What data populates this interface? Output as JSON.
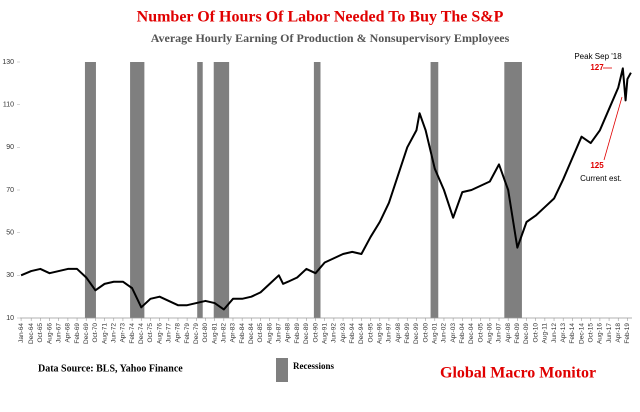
{
  "chart_data": {
    "type": "line",
    "title": "Number Of Hours Of Labor Needed To Buy The S&P",
    "subtitle": "Average Hourly Earning Of Production & Nonsupervisory  Employees",
    "x": [
      1964.0,
      1964.917,
      1965.75,
      1966.583,
      1967.417,
      1968.25,
      1969.083,
      1969.917,
      1970.75,
      1971.583,
      1972.417,
      1973.25,
      1974.083,
      1974.917,
      1975.75,
      1976.583,
      1977.417,
      1978.25,
      1979.083,
      1979.917,
      1980.75,
      1981.583,
      1982.417,
      1983.25,
      1984.083,
      1984.917,
      1985.75,
      1986.583,
      1987.417,
      1987.8,
      1988.25,
      1989.083,
      1989.917,
      1990.75,
      1991.583,
      1992.417,
      1993.25,
      1994.083,
      1994.917,
      1995.75,
      1996.583,
      1997.417,
      1998.25,
      1999.083,
      1999.917,
      2000.2,
      2000.75,
      2001.583,
      2002.417,
      2003.25,
      2004.083,
      2004.917,
      2005.75,
      2006.583,
      2007.417,
      2008.25,
      2009.083,
      2009.917,
      2010.75,
      2011.583,
      2012.417,
      2013.25,
      2014.083,
      2014.917,
      2015.75,
      2016.583,
      2017.417,
      2018.25,
      2018.667,
      2018.917,
      2019.083,
      2019.4
    ],
    "series": [
      {
        "name": "Hours of labor",
        "color": "#000000",
        "values": [
          30,
          32,
          33,
          31,
          32,
          33,
          33,
          29,
          23,
          26,
          27,
          27,
          24,
          15,
          19,
          20,
          18,
          16,
          16,
          17,
          18,
          17,
          14,
          19,
          19,
          20,
          22,
          26,
          30,
          26,
          27,
          29,
          33,
          31,
          36,
          38,
          40,
          41,
          40,
          48,
          55,
          64,
          77,
          90,
          98,
          106,
          98,
          80,
          70,
          57,
          69,
          70,
          72,
          74,
          82,
          70,
          43,
          55,
          58,
          62,
          66,
          75,
          85,
          95,
          92,
          98,
          108,
          118,
          127,
          112,
          122,
          125
        ]
      }
    ],
    "recessions": {
      "name": "Recessions",
      "color": "#7f7f7f",
      "periods": [
        [
          1969.8,
          1970.8
        ],
        [
          1973.9,
          1975.2
        ],
        [
          1980.0,
          1980.5
        ],
        [
          1981.5,
          1982.9
        ],
        [
          1990.6,
          1991.2
        ],
        [
          2001.2,
          2001.9
        ],
        [
          2007.9,
          2009.5
        ]
      ]
    },
    "xlim": [
      1963.9,
      2019.5
    ],
    "xticks": [
      {
        "value": 1964.0,
        "label": "Jan-64"
      },
      {
        "value": 1964.917,
        "label": "Dec-64"
      },
      {
        "value": 1965.75,
        "label": "Oct-65"
      },
      {
        "value": 1966.583,
        "label": "Aug-66"
      },
      {
        "value": 1967.417,
        "label": "Jun-67"
      },
      {
        "value": 1968.25,
        "label": "Apr-68"
      },
      {
        "value": 1969.083,
        "label": "Feb-69"
      },
      {
        "value": 1969.917,
        "label": "Dec-69"
      },
      {
        "value": 1970.75,
        "label": "Oct-70"
      },
      {
        "value": 1971.583,
        "label": "Aug-71"
      },
      {
        "value": 1972.417,
        "label": "Jun-72"
      },
      {
        "value": 1973.25,
        "label": "Apr-73"
      },
      {
        "value": 1974.083,
        "label": "Feb-74"
      },
      {
        "value": 1974.917,
        "label": "Dec-74"
      },
      {
        "value": 1975.75,
        "label": "Oct-75"
      },
      {
        "value": 1976.583,
        "label": "Aug-76"
      },
      {
        "value": 1977.417,
        "label": "Jun-77"
      },
      {
        "value": 1978.25,
        "label": "Apr-78"
      },
      {
        "value": 1979.083,
        "label": "Feb-79"
      },
      {
        "value": 1979.917,
        "label": "Dec-79"
      },
      {
        "value": 1980.75,
        "label": "Oct-80"
      },
      {
        "value": 1981.583,
        "label": "Aug-81"
      },
      {
        "value": 1982.417,
        "label": "Jun-82"
      },
      {
        "value": 1983.25,
        "label": "Apr-83"
      },
      {
        "value": 1984.083,
        "label": "Feb-84"
      },
      {
        "value": 1984.917,
        "label": "Dec-84"
      },
      {
        "value": 1985.75,
        "label": "Oct-85"
      },
      {
        "value": 1986.583,
        "label": "Aug-86"
      },
      {
        "value": 1987.417,
        "label": "Jun-87"
      },
      {
        "value": 1988.25,
        "label": "Apr-88"
      },
      {
        "value": 1989.083,
        "label": "Feb-89"
      },
      {
        "value": 1989.917,
        "label": "Dec-89"
      },
      {
        "value": 1990.75,
        "label": "Oct-90"
      },
      {
        "value": 1991.583,
        "label": "Aug-91"
      },
      {
        "value": 1992.417,
        "label": "Jun-92"
      },
      {
        "value": 1993.25,
        "label": "Apr-93"
      },
      {
        "value": 1994.083,
        "label": "Feb-94"
      },
      {
        "value": 1994.917,
        "label": "Dec-94"
      },
      {
        "value": 1995.75,
        "label": "Oct-95"
      },
      {
        "value": 1996.583,
        "label": "Aug-96"
      },
      {
        "value": 1997.417,
        "label": "Jun-97"
      },
      {
        "value": 1998.25,
        "label": "Apr-98"
      },
      {
        "value": 1999.083,
        "label": "Feb-99"
      },
      {
        "value": 1999.917,
        "label": "Dec-99"
      },
      {
        "value": 2000.75,
        "label": "Oct-00"
      },
      {
        "value": 2001.583,
        "label": "Aug-01"
      },
      {
        "value": 2002.417,
        "label": "Jun-02"
      },
      {
        "value": 2003.25,
        "label": "Apr-03"
      },
      {
        "value": 2004.083,
        "label": "Feb-04"
      },
      {
        "value": 2004.917,
        "label": "Dec-04"
      },
      {
        "value": 2005.75,
        "label": "Oct-05"
      },
      {
        "value": 2006.583,
        "label": "Aug-06"
      },
      {
        "value": 2007.417,
        "label": "Jun-07"
      },
      {
        "value": 2008.25,
        "label": "Apr-08"
      },
      {
        "value": 2009.083,
        "label": "Feb-09"
      },
      {
        "value": 2009.917,
        "label": "Dec-09"
      },
      {
        "value": 2010.75,
        "label": "Oct-10"
      },
      {
        "value": 2011.583,
        "label": "Aug-11"
      },
      {
        "value": 2012.417,
        "label": "Jun-12"
      },
      {
        "value": 2013.25,
        "label": "Apr-13"
      },
      {
        "value": 2014.083,
        "label": "Feb-14"
      },
      {
        "value": 2014.917,
        "label": "Dec-14"
      },
      {
        "value": 2015.75,
        "label": "Oct-15"
      },
      {
        "value": 2016.583,
        "label": "Aug-16"
      },
      {
        "value": 2017.417,
        "label": "Jun-17"
      },
      {
        "value": 2018.25,
        "label": "Apr-18"
      },
      {
        "value": 2019.083,
        "label": "Feb-19"
      }
    ],
    "ylim": [
      10,
      130
    ],
    "yticks": [
      10,
      30,
      50,
      70,
      90,
      110,
      130
    ],
    "annotations": [
      "Peak Sep '18",
      "127",
      "125",
      "Current est."
    ],
    "source": "Data Source:  BLS, Yahoo Finance",
    "brand": "Global Macro Monitor"
  }
}
